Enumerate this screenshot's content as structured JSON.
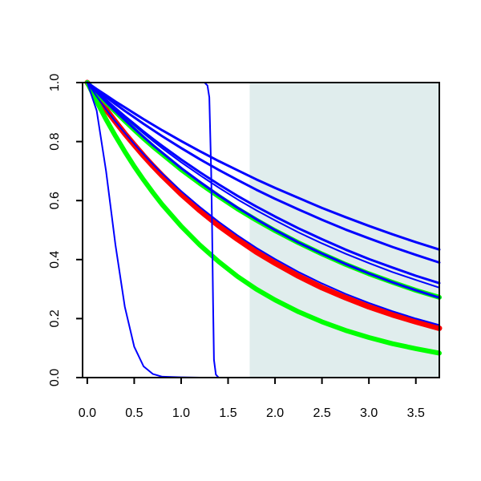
{
  "chart_data": {
    "type": "line",
    "title": "",
    "xlabel": "",
    "ylabel": "",
    "xlim": [
      -0.05,
      3.75
    ],
    "ylim": [
      0,
      1
    ],
    "x_ticks": [
      0.0,
      0.5,
      1.0,
      1.5,
      2.0,
      2.5,
      3.0,
      3.5
    ],
    "x_tick_labels": [
      "0.0",
      "0.5",
      "1.0",
      "1.5",
      "2.0",
      "2.5",
      "3.0",
      "3.5"
    ],
    "y_ticks": [
      0.0,
      0.2,
      0.4,
      0.6,
      0.8,
      1.0
    ],
    "y_tick_labels": [
      "0.0",
      "0.2",
      "0.4",
      "0.6",
      "0.8",
      "1.0"
    ],
    "grid": false,
    "legend": "none",
    "shaded_region": {
      "x": [
        1.73,
        3.75
      ],
      "color": "#e0eded"
    },
    "x_samples": [
      0,
      0.1,
      0.2,
      0.3,
      0.4,
      0.5,
      0.6,
      0.7,
      0.8,
      1.0,
      1.2,
      1.4,
      1.6,
      1.8,
      2.0,
      2.25,
      2.5,
      2.75,
      3.0,
      3.25,
      3.5,
      3.75
    ],
    "series": [
      {
        "color": "#ff0000",
        "width": 7,
        "values": [
          1,
          0.953,
          0.909,
          0.867,
          0.827,
          0.789,
          0.752,
          0.717,
          0.684,
          0.622,
          0.566,
          0.515,
          0.469,
          0.426,
          0.388,
          0.344,
          0.305,
          0.271,
          0.24,
          0.213,
          0.189,
          0.167
        ]
      },
      {
        "color": "#00ff00",
        "width": 6,
        "values": [
          1,
          0.936,
          0.875,
          0.819,
          0.766,
          0.716,
          0.67,
          0.627,
          0.586,
          0.513,
          0.449,
          0.393,
          0.343,
          0.3,
          0.263,
          0.223,
          0.189,
          0.16,
          0.136,
          0.115,
          0.098,
          0.083
        ]
      },
      {
        "color": "#00ff00",
        "width": 6,
        "values": [
          1,
          0.966,
          0.933,
          0.901,
          0.87,
          0.84,
          0.811,
          0.783,
          0.757,
          0.705,
          0.658,
          0.614,
          0.572,
          0.534,
          0.498,
          0.457,
          0.419,
          0.384,
          0.352,
          0.323,
          0.296,
          0.272
        ]
      },
      {
        "color": "#0000ff",
        "width": 3,
        "values": [
          1,
          0.967,
          0.934,
          0.903,
          0.873,
          0.844,
          0.816,
          0.788,
          0.762,
          0.71,
          0.663,
          0.618,
          0.576,
          0.537,
          0.5,
          0.458,
          0.42,
          0.385,
          0.353,
          0.323,
          0.296,
          0.271
        ]
      },
      {
        "color": "#0000ff",
        "width": 3,
        "values": [
          1,
          0.97,
          0.941,
          0.913,
          0.886,
          0.86,
          0.834,
          0.809,
          0.785,
          0.739,
          0.696,
          0.655,
          0.616,
          0.58,
          0.546,
          0.506,
          0.469,
          0.434,
          0.402,
          0.373,
          0.345,
          0.32
        ]
      },
      {
        "color": "#0000ff",
        "width": 3,
        "values": [
          1,
          0.975,
          0.951,
          0.927,
          0.904,
          0.882,
          0.86,
          0.839,
          0.818,
          0.778,
          0.74,
          0.704,
          0.67,
          0.637,
          0.606,
          0.57,
          0.535,
          0.502,
          0.472,
          0.443,
          0.416,
          0.39
        ]
      },
      {
        "color": "#0000ff",
        "width": 3,
        "values": [
          1,
          0.978,
          0.957,
          0.936,
          0.916,
          0.896,
          0.876,
          0.857,
          0.838,
          0.802,
          0.767,
          0.734,
          0.703,
          0.672,
          0.643,
          0.609,
          0.575,
          0.544,
          0.514,
          0.486,
          0.459,
          0.434
        ]
      },
      {
        "color": "#0000ff",
        "width": 2,
        "values": [
          1,
          0.969,
          0.939,
          0.91,
          0.882,
          0.855,
          0.828,
          0.802,
          0.777,
          0.73,
          0.686,
          0.644,
          0.604,
          0.567,
          0.533,
          0.492,
          0.455,
          0.42,
          0.388,
          0.358,
          0.331,
          0.305
        ]
      },
      {
        "color": "#0000ff",
        "width": 2,
        "values": [
          1,
          0.953,
          0.909,
          0.868,
          0.829,
          0.792,
          0.757,
          0.723,
          0.691,
          0.632,
          0.578,
          0.528,
          0.482,
          0.44,
          0.402,
          0.358,
          0.319,
          0.284,
          0.253,
          0.225,
          0.2,
          0.178
        ]
      },
      {
        "color": "#0000ff",
        "width": 2,
        "values": [
          1,
          0.905,
          0.7,
          0.45,
          0.24,
          0.105,
          0.038,
          0.012,
          0.003,
          0.001,
          0,
          0,
          0,
          0,
          0,
          0,
          0,
          0,
          0,
          0,
          0,
          0
        ]
      }
    ],
    "step_curve": {
      "color": "#0000ff",
      "width": 2,
      "x": [
        0,
        1.25,
        1.28,
        1.3,
        1.32,
        1.33,
        1.34,
        1.35,
        1.37,
        1.4,
        3.75
      ],
      "values": [
        1,
        1,
        0.99,
        0.95,
        0.7,
        0.5,
        0.25,
        0.06,
        0.01,
        0,
        0
      ]
    }
  }
}
